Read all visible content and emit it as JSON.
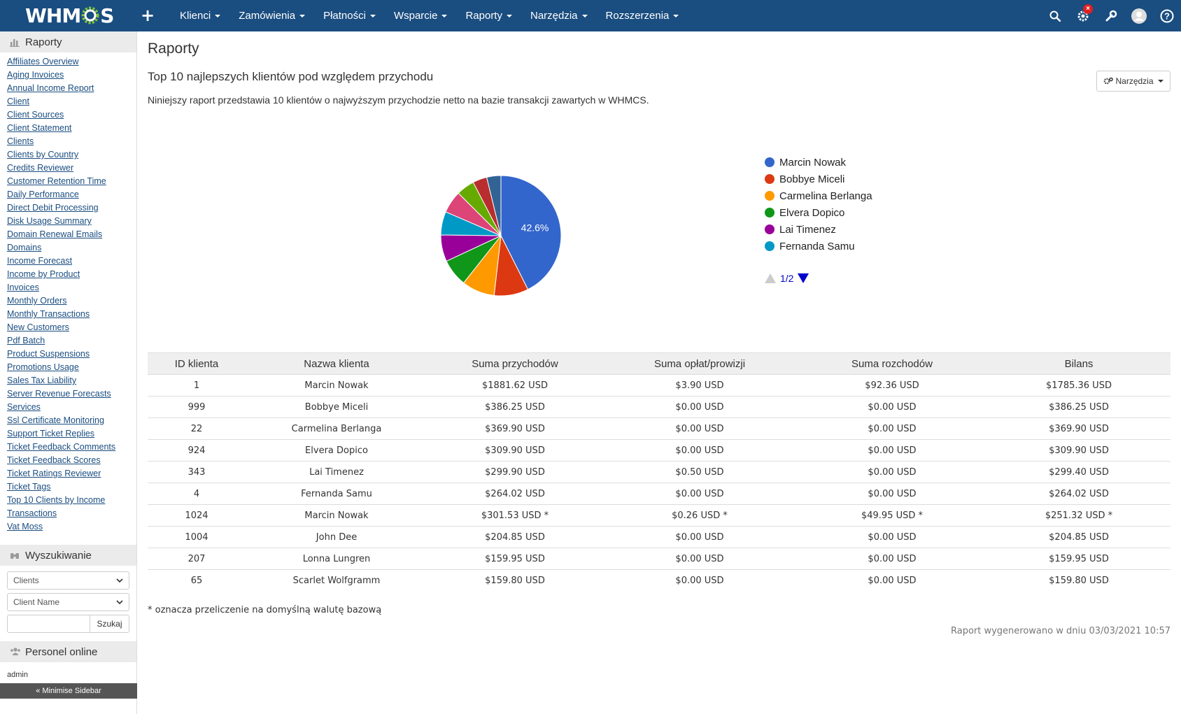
{
  "app": {
    "logo_text_left": "WHM",
    "logo_text_right": "S"
  },
  "nav": {
    "items": [
      {
        "label": "Klienci"
      },
      {
        "label": "Zamówienia"
      },
      {
        "label": "Płatności"
      },
      {
        "label": "Wsparcie"
      },
      {
        "label": "Raporty"
      },
      {
        "label": "Narzędzia"
      },
      {
        "label": "Rozszerzenia"
      }
    ],
    "badge": "×"
  },
  "sidebar": {
    "reports_header": "Raporty",
    "links": [
      "Affiliates Overview",
      "Aging Invoices",
      "Annual Income Report",
      "Client",
      "Client Sources",
      "Client Statement",
      "Clients",
      "Clients by Country",
      "Credits Reviewer",
      "Customer Retention Time",
      "Daily Performance",
      "Direct Debit Processing",
      "Disk Usage Summary",
      "Domain Renewal Emails",
      "Domains",
      "Income Forecast",
      "Income by Product",
      "Invoices",
      "Monthly Orders",
      "Monthly Transactions",
      "New Customers",
      "Pdf Batch",
      "Product Suspensions",
      "Promotions Usage",
      "Sales Tax Liability",
      "Server Revenue Forecasts",
      "Services",
      "Ssl Certificate Monitoring",
      "Support Ticket Replies",
      "Ticket Feedback Comments",
      "Ticket Feedback Scores",
      "Ticket Ratings Reviewer",
      "Ticket Tags",
      "Top 10 Clients by Income",
      "Transactions",
      "Vat Moss"
    ],
    "search_header": "Wyszukiwanie",
    "search_type": "Clients",
    "search_field": "Client Name",
    "search_input": "",
    "search_button": "Szukaj",
    "staff_header": "Personel online",
    "staff_user": "admin",
    "minimise": "« Minimise Sidebar"
  },
  "main": {
    "page_title": "Raporty",
    "report_title": "Top 10 najlepszych klientów pod względem przychodu",
    "report_description": "Niniejszy raport przedstawia 10 klientów o najwyższym przychodzie netto na bazie transakcji zawartych w WHMCS.",
    "tools_button": "Narzędzia",
    "legend_pager": "1/2",
    "table": {
      "headers": [
        "ID klienta",
        "Nazwa klienta",
        "Suma przychodów",
        "Suma opłat/prowizji",
        "Suma rozchodów",
        "Bilans"
      ],
      "rows": [
        [
          "1",
          "Marcin Nowak",
          "$1881.62 USD",
          "$3.90 USD",
          "$92.36 USD",
          "$1785.36 USD"
        ],
        [
          "999",
          "Bobbye Miceli",
          "$386.25 USD",
          "$0.00 USD",
          "$0.00 USD",
          "$386.25 USD"
        ],
        [
          "22",
          "Carmelina Berlanga",
          "$369.90 USD",
          "$0.00 USD",
          "$0.00 USD",
          "$369.90 USD"
        ],
        [
          "924",
          "Elvera Dopico",
          "$309.90 USD",
          "$0.00 USD",
          "$0.00 USD",
          "$309.90 USD"
        ],
        [
          "343",
          "Lai Timenez",
          "$299.90 USD",
          "$0.50 USD",
          "$0.00 USD",
          "$299.40 USD"
        ],
        [
          "4",
          "Fernanda Samu",
          "$264.02 USD",
          "$0.00 USD",
          "$0.00 USD",
          "$264.02 USD"
        ],
        [
          "1024",
          "Marcin Nowak",
          "$301.53 USD *",
          "$0.26 USD *",
          "$49.95 USD *",
          "$251.32 USD *"
        ],
        [
          "1004",
          "John Dee",
          "$204.85 USD",
          "$0.00 USD",
          "$0.00 USD",
          "$204.85 USD"
        ],
        [
          "207",
          "Lonna Lungren",
          "$159.95 USD",
          "$0.00 USD",
          "$0.00 USD",
          "$159.95 USD"
        ],
        [
          "65",
          "Scarlet Wolfgramm",
          "$159.80 USD",
          "$0.00 USD",
          "$0.00 USD",
          "$159.80 USD"
        ]
      ]
    },
    "footnote": "* oznacza przeliczenie na domyślną walutę bazową",
    "generated": "Raport wygenerowano w dniu 03/03/2021 10:57"
  },
  "chart_data": {
    "type": "pie",
    "categories": [
      "Marcin Nowak",
      "Bobbye Miceli",
      "Carmelina Berlanga",
      "Elvera Dopico",
      "Lai Timenez",
      "Fernanda Samu",
      "Marcin Nowak",
      "John Dee",
      "Lonna Lungren",
      "Scarlet Wolfgramm"
    ],
    "values": [
      1785.36,
      386.25,
      369.9,
      309.9,
      299.4,
      264.02,
      251.32,
      204.85,
      159.95,
      159.8
    ],
    "colors": [
      "#3366cc",
      "#dc3912",
      "#ff9900",
      "#109618",
      "#990099",
      "#0099c6",
      "#dd4477",
      "#66aa00",
      "#b82e2e",
      "#316395"
    ],
    "slice_labels": [
      "42.6%",
      "",
      "",
      "",
      "",
      "",
      "",
      "",
      "",
      ""
    ],
    "legend_visible_count": 6,
    "legend_placement": "right"
  }
}
